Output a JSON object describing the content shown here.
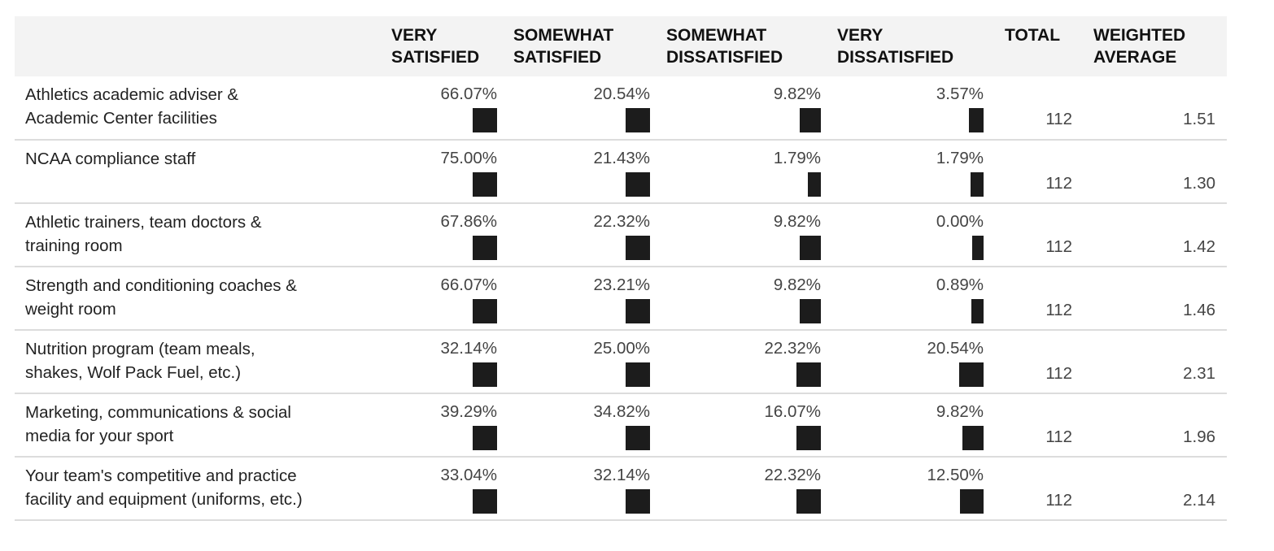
{
  "chart_data": {
    "type": "table",
    "columns": [
      "",
      "VERY SATISFIED",
      "SOMEWHAT SATISFIED",
      "SOMEWHAT DISSATISFIED",
      "VERY DISSATISFIED",
      "TOTAL",
      "WEIGHTED AVERAGE"
    ],
    "header_lines": [
      [
        "",
        ""
      ],
      [
        "VERY",
        "SATISFIED"
      ],
      [
        "SOMEWHAT",
        "SATISFIED"
      ],
      [
        "SOMEWHAT",
        "DISSATISFIED"
      ],
      [
        "VERY",
        "DISSATISFIED"
      ],
      [
        "TOTAL",
        ""
      ],
      [
        "WEIGHTED",
        "AVERAGE"
      ]
    ],
    "rows": [
      {
        "label_lines": [
          "Athletics academic adviser &",
          "Academic Center facilities"
        ],
        "values": [
          66.07,
          20.54,
          9.82,
          3.57
        ],
        "labels": [
          "66.07%",
          "20.54%",
          "9.82%",
          "3.57%"
        ],
        "total": "112",
        "weighted_average": "1.51"
      },
      {
        "label_lines": [
          "NCAA compliance staff",
          ""
        ],
        "values": [
          75.0,
          21.43,
          1.79,
          1.79
        ],
        "labels": [
          "75.00%",
          "21.43%",
          "1.79%",
          "1.79%"
        ],
        "total": "112",
        "weighted_average": "1.30"
      },
      {
        "label_lines": [
          "Athletic trainers, team doctors &",
          "training room"
        ],
        "values": [
          67.86,
          22.32,
          9.82,
          0.0
        ],
        "labels": [
          "67.86%",
          "22.32%",
          "9.82%",
          "0.00%"
        ],
        "total": "112",
        "weighted_average": "1.42"
      },
      {
        "label_lines": [
          "Strength and conditioning coaches &",
          "weight room"
        ],
        "values": [
          66.07,
          23.21,
          9.82,
          0.89
        ],
        "labels": [
          "66.07%",
          "23.21%",
          "9.82%",
          "0.89%"
        ],
        "total": "112",
        "weighted_average": "1.46"
      },
      {
        "label_lines": [
          "Nutrition program (team meals,",
          "shakes, Wolf Pack Fuel, etc.)"
        ],
        "values": [
          32.14,
          25.0,
          22.32,
          20.54
        ],
        "labels": [
          "32.14%",
          "25.00%",
          "22.32%",
          "20.54%"
        ],
        "total": "112",
        "weighted_average": "2.31"
      },
      {
        "label_lines": [
          "Marketing, communications & social",
          "media for your sport"
        ],
        "values": [
          39.29,
          34.82,
          16.07,
          9.82
        ],
        "labels": [
          "39.29%",
          "34.82%",
          "16.07%",
          "9.82%"
        ],
        "total": "112",
        "weighted_average": "1.96"
      },
      {
        "label_lines": [
          "Your team's competitive and practice",
          "facility and equipment (uniforms, etc.)"
        ],
        "values": [
          33.04,
          32.14,
          22.32,
          12.5
        ],
        "labels": [
          "33.04%",
          "32.14%",
          "22.32%",
          "12.50%"
        ],
        "total": "112",
        "weighted_average": "2.14"
      }
    ]
  },
  "colors": {
    "bar": "#1c1c1c",
    "header_bg": "#f3f3f3",
    "row_border": "#dcdcdc"
  }
}
